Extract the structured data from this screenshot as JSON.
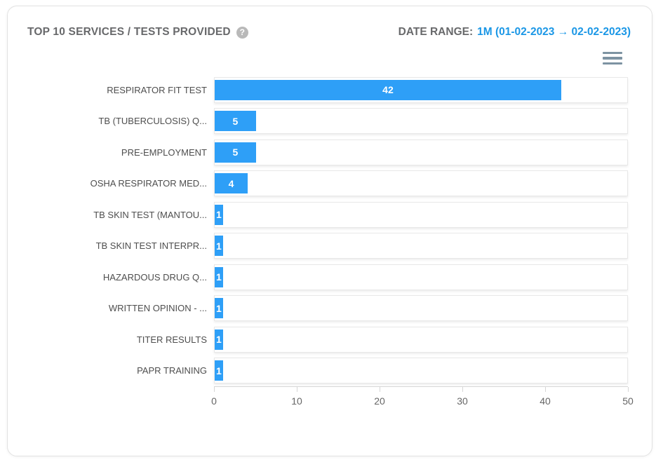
{
  "header": {
    "title": "TOP 10 SERVICES / TESTS PROVIDED",
    "help_glyph": "?",
    "date_range_label": "DATE RANGE:",
    "date_range_value": "1M (01-02-2023 → 02-02-2023)"
  },
  "menu": {
    "icon": "hamburger-menu-icon",
    "tooltip": ""
  },
  "colors": {
    "bar": "#2e9ff7",
    "date_range_blue": "#1b97e6",
    "title_gray": "#68696b",
    "axis_label_gray": "#666666",
    "category_label_gray": "#4e4e4e",
    "track_border": "#e8e8e8",
    "menu_icon_gray": "#7d93a2",
    "help_icon_bg": "#b9b9b9"
  },
  "chart_data": {
    "type": "bar",
    "orientation": "horizontal",
    "title": "TOP 10 SERVICES / TESTS PROVIDED",
    "categories": [
      "RESPIRATOR FIT TEST",
      "TB (TUBERCULOSIS) Q...",
      "PRE-EMPLOYMENT",
      "OSHA RESPIRATOR MED...",
      "TB SKIN TEST (MANTOU...",
      "TB SKIN TEST INTERPR...",
      "HAZARDOUS DRUG Q...",
      "WRITTEN OPINION - ...",
      "TITER RESULTS",
      "PAPR TRAINING"
    ],
    "values": [
      42,
      5,
      5,
      4,
      1,
      1,
      1,
      1,
      1,
      1
    ],
    "xlabel": "",
    "ylabel": "",
    "xlim": [
      0,
      50
    ],
    "x_ticks": [
      0,
      10,
      20,
      30,
      40,
      50
    ],
    "grid": "category-band-tracks",
    "legend": "none",
    "value_labels": "inside-center-white"
  }
}
